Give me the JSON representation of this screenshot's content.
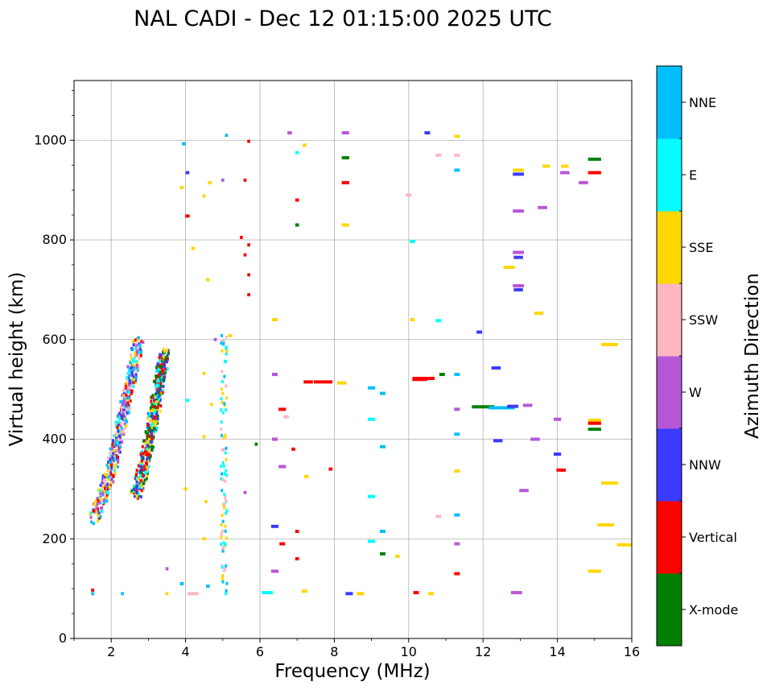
{
  "chart_data": {
    "type": "scatter",
    "title": "NAL CADI - Dec 12 01:15:00 2025 UTC",
    "xlabel": "Frequency (MHz)",
    "ylabel": "Virtual height (km)",
    "xlim": [
      1,
      16
    ],
    "ylim": [
      0,
      1120
    ],
    "xticks": [
      2,
      4,
      6,
      8,
      10,
      12,
      14,
      16
    ],
    "yticks": [
      0,
      200,
      400,
      600,
      800,
      1000
    ],
    "grid": true,
    "colorbar": {
      "label": "Azimuth Direction",
      "categories": [
        {
          "name": "X-mode",
          "color": "#008000"
        },
        {
          "name": "Vertical",
          "color": "#ff0000"
        },
        {
          "name": "NNW",
          "color": "#3b3bff"
        },
        {
          "name": "W",
          "color": "#b657d8"
        },
        {
          "name": "SSW",
          "color": "#ffb6c1"
        },
        {
          "name": "SSE",
          "color": "#ffd700"
        },
        {
          "name": "E",
          "color": "#00ffff"
        },
        {
          "name": "NNE",
          "color": "#00bfff"
        }
      ]
    },
    "traces": [
      {
        "name": "O-mode trace",
        "x_start": 1.5,
        "y_start": 245,
        "x_end": 2.7,
        "y_end": 600,
        "classes": [
          "Vertical",
          "NNE",
          "SSW",
          "SSE",
          "NNW",
          "E",
          "W"
        ]
      },
      {
        "name": "X-mode trace",
        "x_start": 2.6,
        "y_start": 290,
        "x_end": 3.4,
        "y_end": 580,
        "classes": [
          "X-mode",
          "NNW",
          "SSE",
          "E",
          "Vertical"
        ]
      }
    ],
    "spread_columns": [
      {
        "x": 5.0,
        "y_min": 90,
        "y_max": 620,
        "classes": [
          "SSW",
          "E",
          "SSE",
          "NNE"
        ]
      }
    ],
    "points": [
      {
        "x": 7.7,
        "y": 515,
        "dir": "Vertical",
        "w": 0.5
      },
      {
        "x": 8.2,
        "y": 513,
        "dir": "SSE",
        "w": 0.25
      },
      {
        "x": 10.4,
        "y": 522,
        "dir": "Vertical",
        "w": 0.6
      },
      {
        "x": 10.3,
        "y": 520,
        "dir": "Vertical",
        "w": 0.4
      },
      {
        "x": 12.0,
        "y": 465,
        "dir": "X-mode",
        "w": 0.6
      },
      {
        "x": 12.5,
        "y": 463,
        "dir": "NNE",
        "w": 0.7
      },
      {
        "x": 12.8,
        "y": 466,
        "dir": "NNW",
        "w": 0.3
      },
      {
        "x": 13.2,
        "y": 468,
        "dir": "W",
        "w": 0.25
      },
      {
        "x": 12.35,
        "y": 543,
        "dir": "NNW",
        "w": 0.25
      },
      {
        "x": 11.3,
        "y": 530,
        "dir": "NNE",
        "w": 0.15
      },
      {
        "x": 10.9,
        "y": 530,
        "dir": "X-mode",
        "w": 0.15
      },
      {
        "x": 12.95,
        "y": 775,
        "dir": "W",
        "w": 0.3
      },
      {
        "x": 12.95,
        "y": 765,
        "dir": "NNW",
        "w": 0.25
      },
      {
        "x": 12.95,
        "y": 708,
        "dir": "W",
        "w": 0.3
      },
      {
        "x": 12.95,
        "y": 700,
        "dir": "NNW",
        "w": 0.25
      },
      {
        "x": 12.95,
        "y": 858,
        "dir": "W",
        "w": 0.3
      },
      {
        "x": 12.95,
        "y": 940,
        "dir": "SSE",
        "w": 0.3
      },
      {
        "x": 12.95,
        "y": 932,
        "dir": "NNW",
        "w": 0.3
      },
      {
        "x": 15.0,
        "y": 962,
        "dir": "X-mode",
        "w": 0.35
      },
      {
        "x": 15.0,
        "y": 935,
        "dir": "Vertical",
        "w": 0.35
      },
      {
        "x": 15.0,
        "y": 438,
        "dir": "SSE",
        "w": 0.35
      },
      {
        "x": 15.0,
        "y": 432,
        "dir": "Vertical",
        "w": 0.35
      },
      {
        "x": 15.0,
        "y": 420,
        "dir": "X-mode",
        "w": 0.35
      },
      {
        "x": 15.0,
        "y": 135,
        "dir": "SSE",
        "w": 0.35
      },
      {
        "x": 15.8,
        "y": 188,
        "dir": "SSE",
        "w": 0.4
      },
      {
        "x": 15.4,
        "y": 590,
        "dir": "SSE",
        "w": 0.45
      },
      {
        "x": 15.4,
        "y": 312,
        "dir": "SSE",
        "w": 0.45
      },
      {
        "x": 15.3,
        "y": 228,
        "dir": "SSE",
        "w": 0.45
      },
      {
        "x": 13.6,
        "y": 865,
        "dir": "W",
        "w": 0.25
      },
      {
        "x": 14.2,
        "y": 935,
        "dir": "W",
        "w": 0.25
      },
      {
        "x": 14.7,
        "y": 915,
        "dir": "W",
        "w": 0.25
      },
      {
        "x": 13.7,
        "y": 948,
        "dir": "SSE",
        "w": 0.2
      },
      {
        "x": 14.2,
        "y": 948,
        "dir": "SSE",
        "w": 0.2
      },
      {
        "x": 14.0,
        "y": 440,
        "dir": "W",
        "w": 0.2
      },
      {
        "x": 14.1,
        "y": 338,
        "dir": "Vertical",
        "w": 0.25
      },
      {
        "x": 14.0,
        "y": 370,
        "dir": "NNW",
        "w": 0.2
      },
      {
        "x": 13.4,
        "y": 400,
        "dir": "W",
        "w": 0.25
      },
      {
        "x": 13.1,
        "y": 297,
        "dir": "W",
        "w": 0.25
      },
      {
        "x": 12.9,
        "y": 92,
        "dir": "W",
        "w": 0.3
      },
      {
        "x": 12.7,
        "y": 745,
        "dir": "SSE",
        "w": 0.3
      },
      {
        "x": 13.5,
        "y": 653,
        "dir": "SSE",
        "w": 0.25
      },
      {
        "x": 11.3,
        "y": 1008,
        "dir": "SSE",
        "w": 0.15
      },
      {
        "x": 11.3,
        "y": 970,
        "dir": "SSW",
        "w": 0.15
      },
      {
        "x": 11.3,
        "y": 940,
        "dir": "NNE",
        "w": 0.15
      },
      {
        "x": 11.3,
        "y": 336,
        "dir": "SSE",
        "w": 0.15
      },
      {
        "x": 11.3,
        "y": 190,
        "dir": "W",
        "w": 0.15
      },
      {
        "x": 11.3,
        "y": 130,
        "dir": "Vertical",
        "w": 0.15
      },
      {
        "x": 11.3,
        "y": 460,
        "dir": "W",
        "w": 0.15
      },
      {
        "x": 11.3,
        "y": 410,
        "dir": "NNE",
        "w": 0.15
      },
      {
        "x": 11.3,
        "y": 248,
        "dir": "NNE",
        "w": 0.15
      },
      {
        "x": 11.9,
        "y": 615,
        "dir": "NNW",
        "w": 0.15
      },
      {
        "x": 12.4,
        "y": 397,
        "dir": "NNW",
        "w": 0.25
      },
      {
        "x": 9.0,
        "y": 440,
        "dir": "E",
        "w": 0.2
      },
      {
        "x": 9.0,
        "y": 285,
        "dir": "E",
        "w": 0.2
      },
      {
        "x": 9.0,
        "y": 195,
        "dir": "E",
        "w": 0.2
      },
      {
        "x": 9.0,
        "y": 503,
        "dir": "NNE",
        "w": 0.2
      },
      {
        "x": 9.3,
        "y": 492,
        "dir": "NNE",
        "w": 0.15
      },
      {
        "x": 9.3,
        "y": 385,
        "dir": "NNE",
        "w": 0.15
      },
      {
        "x": 9.3,
        "y": 215,
        "dir": "NNE",
        "w": 0.15
      },
      {
        "x": 9.3,
        "y": 170,
        "dir": "X-mode",
        "w": 0.15
      },
      {
        "x": 9.7,
        "y": 165,
        "dir": "SSE",
        "w": 0.12
      },
      {
        "x": 8.3,
        "y": 965,
        "dir": "X-mode",
        "w": 0.2
      },
      {
        "x": 8.3,
        "y": 915,
        "dir": "Vertical",
        "w": 0.2
      },
      {
        "x": 8.3,
        "y": 830,
        "dir": "SSE",
        "w": 0.2
      },
      {
        "x": 8.3,
        "y": 1015,
        "dir": "W",
        "w": 0.2
      },
      {
        "x": 8.4,
        "y": 90,
        "dir": "NNW",
        "w": 0.2
      },
      {
        "x": 8.7,
        "y": 90,
        "dir": "SSE",
        "w": 0.2
      },
      {
        "x": 10.2,
        "y": 92,
        "dir": "Vertical",
        "w": 0.15
      },
      {
        "x": 10.6,
        "y": 90,
        "dir": "SSE",
        "w": 0.15
      },
      {
        "x": 10.5,
        "y": 1015,
        "dir": "NNW",
        "w": 0.15
      },
      {
        "x": 10.8,
        "y": 970,
        "dir": "SSW",
        "w": 0.15
      },
      {
        "x": 10.0,
        "y": 890,
        "dir": "SSW",
        "w": 0.15
      },
      {
        "x": 10.1,
        "y": 797,
        "dir": "E",
        "w": 0.15
      },
      {
        "x": 10.8,
        "y": 638,
        "dir": "E",
        "w": 0.15
      },
      {
        "x": 10.1,
        "y": 640,
        "dir": "SSE",
        "w": 0.12
      },
      {
        "x": 10.8,
        "y": 245,
        "dir": "SSW",
        "w": 0.15
      },
      {
        "x": 6.8,
        "y": 1015,
        "dir": "W",
        "w": 0.12
      },
      {
        "x": 7.0,
        "y": 975,
        "dir": "E",
        "w": 0.1
      },
      {
        "x": 7.2,
        "y": 990,
        "dir": "SSE",
        "w": 0.1
      },
      {
        "x": 7.0,
        "y": 880,
        "dir": "Vertical",
        "w": 0.1
      },
      {
        "x": 7.0,
        "y": 830,
        "dir": "X-mode",
        "w": 0.1
      },
      {
        "x": 7.3,
        "y": 515,
        "dir": "Vertical",
        "w": 0.25
      },
      {
        "x": 6.6,
        "y": 460,
        "dir": "Vertical",
        "w": 0.2
      },
      {
        "x": 6.6,
        "y": 345,
        "dir": "W",
        "w": 0.2
      },
      {
        "x": 6.4,
        "y": 225,
        "dir": "NNW",
        "w": 0.2
      },
      {
        "x": 6.4,
        "y": 135,
        "dir": "W",
        "w": 0.2
      },
      {
        "x": 6.6,
        "y": 190,
        "dir": "Vertical",
        "w": 0.15
      },
      {
        "x": 7.0,
        "y": 160,
        "dir": "Vertical",
        "w": 0.1
      },
      {
        "x": 7.0,
        "y": 215,
        "dir": "Vertical",
        "w": 0.1
      },
      {
        "x": 6.9,
        "y": 380,
        "dir": "Vertical",
        "w": 0.1
      },
      {
        "x": 6.4,
        "y": 530,
        "dir": "W",
        "w": 0.15
      },
      {
        "x": 6.4,
        "y": 400,
        "dir": "W",
        "w": 0.15
      },
      {
        "x": 6.4,
        "y": 640,
        "dir": "SSE",
        "w": 0.15
      },
      {
        "x": 6.7,
        "y": 445,
        "dir": "SSW",
        "w": 0.15
      },
      {
        "x": 6.2,
        "y": 92,
        "dir": "E",
        "w": 0.3
      },
      {
        "x": 7.9,
        "y": 340,
        "dir": "Vertical",
        "w": 0.1
      },
      {
        "x": 7.25,
        "y": 325,
        "dir": "SSE",
        "w": 0.12
      },
      {
        "x": 7.2,
        "y": 95,
        "dir": "SSE",
        "w": 0.15
      },
      {
        "x": 5.7,
        "y": 790,
        "dir": "Vertical",
        "w": 0.08
      },
      {
        "x": 5.7,
        "y": 730,
        "dir": "Vertical",
        "w": 0.08
      },
      {
        "x": 5.7,
        "y": 690,
        "dir": "Vertical",
        "w": 0.08
      },
      {
        "x": 5.6,
        "y": 920,
        "dir": "Vertical",
        "w": 0.08
      },
      {
        "x": 5.6,
        "y": 770,
        "dir": "Vertical",
        "w": 0.08
      },
      {
        "x": 5.5,
        "y": 805,
        "dir": "Vertical",
        "w": 0.08
      },
      {
        "x": 5.7,
        "y": 998,
        "dir": "Vertical",
        "w": 0.08
      },
      {
        "x": 5.1,
        "y": 1010,
        "dir": "NNE",
        "w": 0.08
      },
      {
        "x": 5.0,
        "y": 920,
        "dir": "W",
        "w": 0.08
      },
      {
        "x": 3.95,
        "y": 993,
        "dir": "NNE",
        "w": 0.1
      },
      {
        "x": 4.05,
        "y": 935,
        "dir": "NNW",
        "w": 0.1
      },
      {
        "x": 4.05,
        "y": 848,
        "dir": "Vertical",
        "w": 0.12
      },
      {
        "x": 3.9,
        "y": 905,
        "dir": "SSE",
        "w": 0.1
      },
      {
        "x": 4.5,
        "y": 888,
        "dir": "SSE",
        "w": 0.08
      },
      {
        "x": 4.65,
        "y": 915,
        "dir": "SSE",
        "w": 0.1
      },
      {
        "x": 4.2,
        "y": 783,
        "dir": "SSE",
        "w": 0.1
      },
      {
        "x": 4.6,
        "y": 720,
        "dir": "SSE",
        "w": 0.1
      },
      {
        "x": 4.05,
        "y": 478,
        "dir": "E",
        "w": 0.1
      },
      {
        "x": 4.0,
        "y": 300,
        "dir": "SSE",
        "w": 0.1
      },
      {
        "x": 3.9,
        "y": 110,
        "dir": "NNE",
        "w": 0.1
      },
      {
        "x": 4.2,
        "y": 90,
        "dir": "SSW",
        "w": 0.3
      },
      {
        "x": 4.6,
        "y": 105,
        "dir": "NNE",
        "w": 0.1
      },
      {
        "x": 4.5,
        "y": 200,
        "dir": "SSE",
        "w": 0.1
      },
      {
        "x": 3.5,
        "y": 140,
        "dir": "W",
        "w": 0.08
      },
      {
        "x": 3.5,
        "y": 90,
        "dir": "SSE",
        "w": 0.08
      },
      {
        "x": 2.3,
        "y": 90,
        "dir": "NNE",
        "w": 0.08
      },
      {
        "x": 1.5,
        "y": 97,
        "dir": "Vertical",
        "w": 0.08
      },
      {
        "x": 1.5,
        "y": 90,
        "dir": "NNE",
        "w": 0.08
      },
      {
        "x": 4.8,
        "y": 600,
        "dir": "W",
        "w": 0.08
      },
      {
        "x": 4.7,
        "y": 470,
        "dir": "SSE",
        "w": 0.08
      },
      {
        "x": 4.5,
        "y": 532,
        "dir": "SSE",
        "w": 0.08
      },
      {
        "x": 4.5,
        "y": 405,
        "dir": "SSE",
        "w": 0.08
      },
      {
        "x": 4.55,
        "y": 275,
        "dir": "SSE",
        "w": 0.08
      },
      {
        "x": 5.6,
        "y": 293,
        "dir": "W",
        "w": 0.08
      },
      {
        "x": 5.9,
        "y": 390,
        "dir": "X-mode",
        "w": 0.08
      },
      {
        "x": 5.2,
        "y": 608,
        "dir": "SSE",
        "w": 0.1
      }
    ]
  }
}
